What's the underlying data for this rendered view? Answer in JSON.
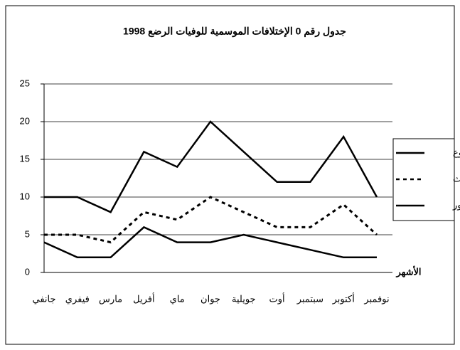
{
  "chart_data": {
    "type": "line",
    "title": "جدول رقم 0 الإختلافات الموسمية للوفيات الرضع 1998",
    "x_label": "الأشهر",
    "categories": [
      "جانفي",
      "فيفري",
      "مارس",
      "أفريل",
      "ماي",
      "جوان",
      "جويلية",
      "أوت",
      "سبتمبر",
      "أكتوبر",
      "نوفمبر"
    ],
    "series": [
      {
        "name": "المجموع",
        "color": "#000000",
        "style": "solid",
        "values": [
          10,
          10,
          8,
          16,
          14,
          20,
          16,
          12,
          12,
          18,
          10
        ]
      },
      {
        "name": "إناث",
        "color": "#000000",
        "style": "dotted",
        "values": [
          5,
          5,
          4,
          8,
          7,
          10,
          8,
          6,
          6,
          9,
          5
        ]
      },
      {
        "name": "ذكور",
        "color": "#000000",
        "style": "solid",
        "values": [
          4,
          2,
          2,
          6,
          4,
          4,
          5,
          4,
          3,
          2,
          2
        ]
      }
    ],
    "ylim": [
      0,
      25
    ],
    "yticks": [
      0,
      5,
      10,
      15,
      20,
      25
    ],
    "grid": true,
    "legend": "right"
  }
}
